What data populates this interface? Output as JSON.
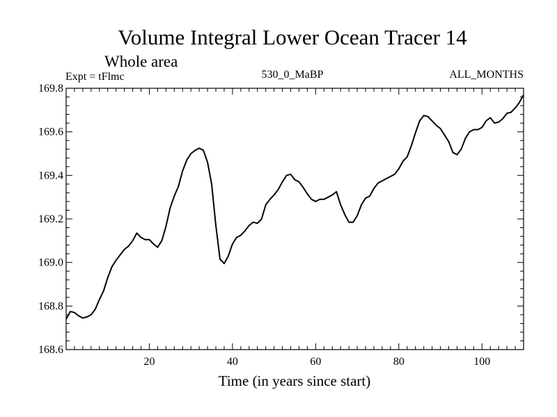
{
  "header": {
    "title": "Volume Integral Lower Ocean Tracer 14",
    "subtitle": "Whole area",
    "expt": "Expt = tFlmc",
    "period": "530_0_MaBP",
    "months": "ALL_MONTHS"
  },
  "chart_data": {
    "type": "line",
    "title": "Volume Integral Lower Ocean Tracer 14",
    "xlabel": "Time (in years since start)",
    "ylabel": "",
    "xlim": [
      0,
      110
    ],
    "ylim": [
      168.6,
      169.8
    ],
    "xticks": [
      20,
      40,
      60,
      80,
      100
    ],
    "xtick_labels": [
      "20",
      "40",
      "60",
      "80",
      "100"
    ],
    "yticks": [
      168.6,
      168.8,
      169.0,
      169.2,
      169.4,
      169.6,
      169.8
    ],
    "ytick_labels": [
      "168.6",
      "168.8",
      "169.0",
      "169.2",
      "169.4",
      "169.6",
      "169.8"
    ],
    "grid": false,
    "series": [
      {
        "name": "Tracer 14",
        "color": "#000000",
        "x": [
          0,
          1,
          2,
          3,
          4,
          5,
          6,
          7,
          8,
          9,
          10,
          11,
          12,
          13,
          14,
          15,
          16,
          17,
          18,
          19,
          20,
          21,
          22,
          23,
          24,
          25,
          26,
          27,
          28,
          29,
          30,
          31,
          32,
          33,
          34,
          35,
          36,
          37,
          38,
          39,
          40,
          41,
          42,
          43,
          44,
          45,
          46,
          47,
          48,
          49,
          50,
          51,
          52,
          53,
          54,
          55,
          56,
          57,
          58,
          59,
          60,
          61,
          62,
          63,
          64,
          65,
          66,
          67,
          68,
          69,
          70,
          71,
          72,
          73,
          74,
          75,
          76,
          77,
          78,
          79,
          80,
          81,
          82,
          83,
          84,
          85,
          86,
          87,
          88,
          89,
          90,
          91,
          92,
          93,
          94,
          95,
          96,
          97,
          98,
          99,
          100,
          101,
          102,
          103,
          104,
          105,
          106,
          107,
          108,
          109,
          110
        ],
        "values": [
          168.74,
          168.775,
          168.77,
          168.755,
          168.745,
          168.75,
          168.76,
          168.785,
          168.83,
          168.87,
          168.93,
          168.98,
          169.01,
          169.035,
          169.06,
          169.075,
          169.1,
          169.135,
          169.115,
          169.105,
          169.105,
          169.085,
          169.07,
          169.1,
          169.165,
          169.25,
          169.305,
          169.35,
          169.42,
          169.47,
          169.5,
          169.515,
          169.525,
          169.515,
          169.46,
          169.36,
          169.17,
          169.015,
          168.995,
          169.03,
          169.085,
          169.115,
          169.125,
          169.145,
          169.17,
          169.185,
          169.18,
          169.2,
          169.265,
          169.29,
          169.31,
          169.335,
          169.37,
          169.4,
          169.405,
          169.38,
          169.37,
          169.345,
          169.315,
          169.29,
          169.28,
          169.29,
          169.29,
          169.3,
          169.31,
          169.325,
          169.265,
          169.22,
          169.185,
          169.185,
          169.215,
          169.265,
          169.295,
          169.305,
          169.34,
          169.365,
          169.375,
          169.385,
          169.395,
          169.405,
          169.43,
          169.465,
          169.485,
          169.535,
          169.595,
          169.65,
          169.675,
          169.67,
          169.65,
          169.63,
          169.615,
          169.585,
          169.555,
          169.505,
          169.495,
          169.52,
          169.57,
          169.6,
          169.61,
          169.61,
          169.62,
          169.65,
          169.665,
          169.64,
          169.645,
          169.66,
          169.685,
          169.69,
          169.71,
          169.735,
          169.77
        ]
      }
    ]
  }
}
